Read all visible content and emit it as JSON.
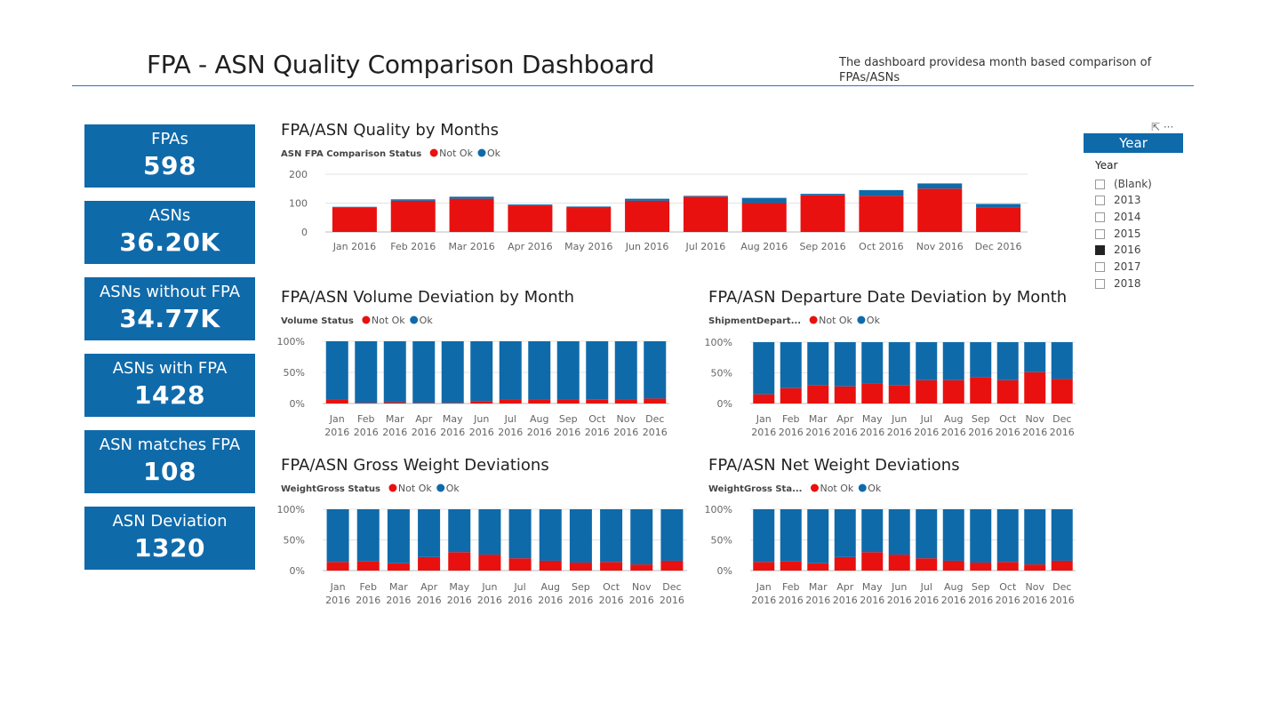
{
  "header": {
    "title": "FPA - ASN Quality Comparison Dashboard",
    "description": "The dashboard providesa month based comparison of FPAs/ASNs"
  },
  "colors": {
    "not_ok": "#e8110f",
    "ok": "#0f6aaa",
    "kpi_bg": "#0f6aaa",
    "rule": "#2a73c8"
  },
  "kpis": [
    {
      "label": "FPAs",
      "value": "598"
    },
    {
      "label": "ASNs",
      "value": "36.20K"
    },
    {
      "label": "ASNs without FPA",
      "value": "34.77K"
    },
    {
      "label": "ASNs with FPA",
      "value": "1428"
    },
    {
      "label": "ASN matches FPA",
      "value": "108"
    },
    {
      "label": "ASN Deviation",
      "value": "1320"
    }
  ],
  "slicer": {
    "tools": "⇱ ···",
    "header": "Year",
    "field": "Year",
    "items": [
      {
        "label": "(Blank)",
        "checked": false
      },
      {
        "label": "2013",
        "checked": false
      },
      {
        "label": "2014",
        "checked": false
      },
      {
        "label": "2015",
        "checked": false
      },
      {
        "label": "2016",
        "checked": true
      },
      {
        "label": "2017",
        "checked": false
      },
      {
        "label": "2018",
        "checked": false
      }
    ]
  },
  "chart_data": [
    {
      "id": "quality",
      "type": "bar",
      "stacked": true,
      "title": "FPA/ASN Quality by Months",
      "legend_title": "ASN FPA Comparison Status",
      "ylim": [
        0,
        200
      ],
      "yticks": [
        "0",
        "100",
        "200"
      ],
      "grid": true,
      "legend": "top-left",
      "categories": [
        "Jan 2016",
        "Feb 2016",
        "Mar 2016",
        "Apr 2016",
        "May 2016",
        "Jun 2016",
        "Jul 2016",
        "Aug 2016",
        "Sep 2016",
        "Oct 2016",
        "Nov 2016",
        "Dec 2016"
      ],
      "series": [
        {
          "name": "Not Ok",
          "values": [
            85,
            108,
            115,
            92,
            83,
            108,
            122,
            100,
            127,
            125,
            150,
            85
          ]
        },
        {
          "name": "Ok",
          "values": [
            2,
            5,
            7,
            3,
            5,
            7,
            3,
            18,
            5,
            20,
            18,
            12
          ]
        }
      ]
    },
    {
      "id": "volume",
      "type": "bar",
      "stacked": true,
      "percent": true,
      "title": "FPA/ASN Volume Deviation by Month",
      "legend_title": "Volume Status",
      "ylim": [
        0,
        100
      ],
      "yticks": [
        "0%",
        "50%",
        "100%"
      ],
      "grid": true,
      "legend": "top-left",
      "categories": [
        "Jan",
        "Feb",
        "Mar",
        "Apr",
        "May",
        "Jun",
        "Jul",
        "Aug",
        "Sep",
        "Oct",
        "Nov",
        "Dec"
      ],
      "category_sub": "2016",
      "series": [
        {
          "name": "Not Ok",
          "values": [
            7,
            1,
            2,
            1,
            1,
            4,
            7,
            7,
            7,
            6,
            7,
            8
          ]
        },
        {
          "name": "Ok",
          "values": [
            93,
            99,
            98,
            99,
            99,
            96,
            93,
            93,
            93,
            94,
            93,
            92
          ]
        }
      ]
    },
    {
      "id": "departure",
      "type": "bar",
      "stacked": true,
      "percent": true,
      "title": "FPA/ASN Departure Date Deviation by Month",
      "legend_title": "ShipmentDepart...",
      "ylim": [
        0,
        100
      ],
      "yticks": [
        "0%",
        "50%",
        "100%"
      ],
      "grid": true,
      "legend": "top-left",
      "categories": [
        "Jan",
        "Feb",
        "Mar",
        "Apr",
        "May",
        "Jun",
        "Jul",
        "Aug",
        "Sep",
        "Oct",
        "Nov",
        "Dec"
      ],
      "category_sub": "2016",
      "series": [
        {
          "name": "Not Ok",
          "values": [
            15,
            25,
            30,
            28,
            32,
            30,
            38,
            38,
            43,
            38,
            51,
            40
          ]
        },
        {
          "name": "Ok",
          "values": [
            85,
            75,
            70,
            72,
            68,
            70,
            62,
            62,
            57,
            62,
            49,
            60
          ]
        }
      ]
    },
    {
      "id": "gross",
      "type": "bar",
      "stacked": true,
      "percent": true,
      "title": "FPA/ASN Gross Weight Deviations",
      "legend_title": "WeightGross Status",
      "ylim": [
        0,
        100
      ],
      "yticks": [
        "0%",
        "50%",
        "100%"
      ],
      "grid": true,
      "legend": "top-left",
      "categories": [
        "Jan",
        "Feb",
        "Mar",
        "Apr",
        "May",
        "Jun",
        "Jul",
        "Aug",
        "Sep",
        "Oct",
        "Nov",
        "Dec"
      ],
      "category_sub": "2016",
      "series": [
        {
          "name": "Not Ok",
          "values": [
            14,
            15,
            12,
            22,
            30,
            26,
            20,
            16,
            13,
            14,
            10,
            16
          ]
        },
        {
          "name": "Ok",
          "values": [
            86,
            85,
            88,
            78,
            70,
            74,
            80,
            84,
            87,
            86,
            90,
            84
          ]
        }
      ]
    },
    {
      "id": "net",
      "type": "bar",
      "stacked": true,
      "percent": true,
      "title": "FPA/ASN Net Weight Deviations",
      "legend_title": "WeightGross Sta...",
      "ylim": [
        0,
        100
      ],
      "yticks": [
        "0%",
        "50%",
        "100%"
      ],
      "grid": true,
      "legend": "top-left",
      "categories": [
        "Jan",
        "Feb",
        "Mar",
        "Apr",
        "May",
        "Jun",
        "Jul",
        "Aug",
        "Sep",
        "Oct",
        "Nov",
        "Dec"
      ],
      "category_sub": "2016",
      "series": [
        {
          "name": "Not Ok",
          "values": [
            14,
            15,
            12,
            22,
            30,
            26,
            20,
            16,
            13,
            14,
            10,
            16
          ]
        },
        {
          "name": "Ok",
          "values": [
            86,
            85,
            88,
            78,
            70,
            74,
            80,
            84,
            87,
            86,
            90,
            84
          ]
        }
      ]
    }
  ]
}
